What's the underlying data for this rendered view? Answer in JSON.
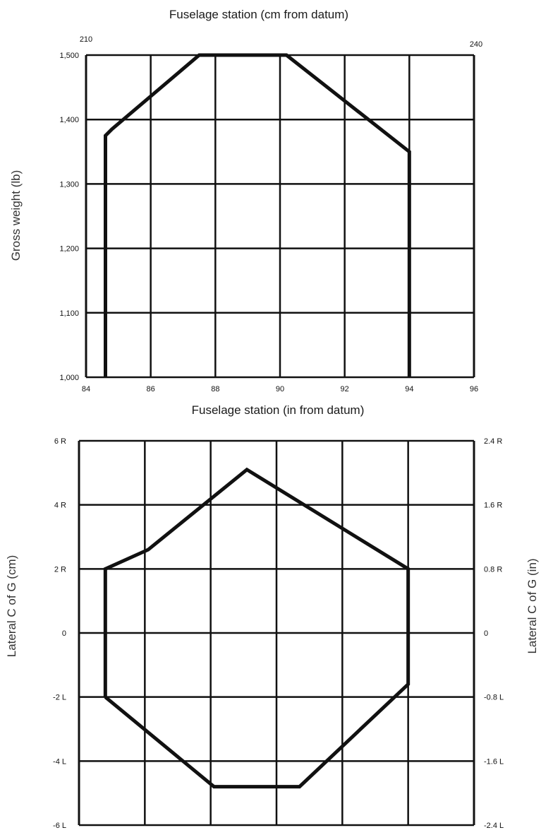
{
  "chart_data": [
    {
      "type": "line",
      "title": "Fuselage station (cm from datum)",
      "xlabel": "Fuselage station (in from datum)",
      "ylabel": "Gross weight (lb)",
      "xlim": [
        84,
        96
      ],
      "ylim": [
        1000,
        1500
      ],
      "x_ticks": [
        84,
        86,
        88,
        90,
        92,
        94,
        96
      ],
      "x_tick_labels": [
        "84",
        "86",
        "88",
        "90",
        "92",
        "94",
        "96"
      ],
      "y_ticks": [
        1000,
        1100,
        1200,
        1300,
        1400,
        1500
      ],
      "y_tick_labels": [
        "1,000",
        "1,100",
        "1,200",
        "1,300",
        "1,400",
        "1,500"
      ],
      "top_axis_labels": [
        "210",
        "240"
      ],
      "grid": true,
      "series": [
        {
          "x": [
            84.6,
            84.6,
            84.8,
            87.5,
            90.2,
            94,
            94
          ],
          "y": [
            1000,
            1375,
            1385,
            1500,
            1500,
            1350,
            1000
          ]
        }
      ]
    },
    {
      "type": "line",
      "ylabel": "Lateral C of G (cm)",
      "ylabel_right": "Lateral C of G (in)",
      "xlim": [
        84,
        96
      ],
      "ylim": [
        -6,
        6
      ],
      "y_ticks": [
        -6,
        -4,
        -2,
        0,
        2,
        4,
        6
      ],
      "y_tick_labels": [
        "-6 L",
        "-4 L",
        "-2 L",
        "0",
        "2 R",
        "4 R",
        "6 R"
      ],
      "y_right_tick_labels": [
        "-2.4 L",
        "-1.6 L",
        "-0.8 L",
        "0",
        "0.8 R",
        "1.6 R",
        "2.4 R"
      ],
      "grid": true,
      "series": [
        {
          "x": [
            84.8,
            84.8,
            86.1,
            89.1,
            94,
            94,
            90.7,
            88.1,
            84.8
          ],
          "y": [
            -2,
            2,
            2.6,
            5.1,
            2,
            -1.6,
            -4.8,
            -4.8,
            -2
          ]
        }
      ]
    }
  ]
}
